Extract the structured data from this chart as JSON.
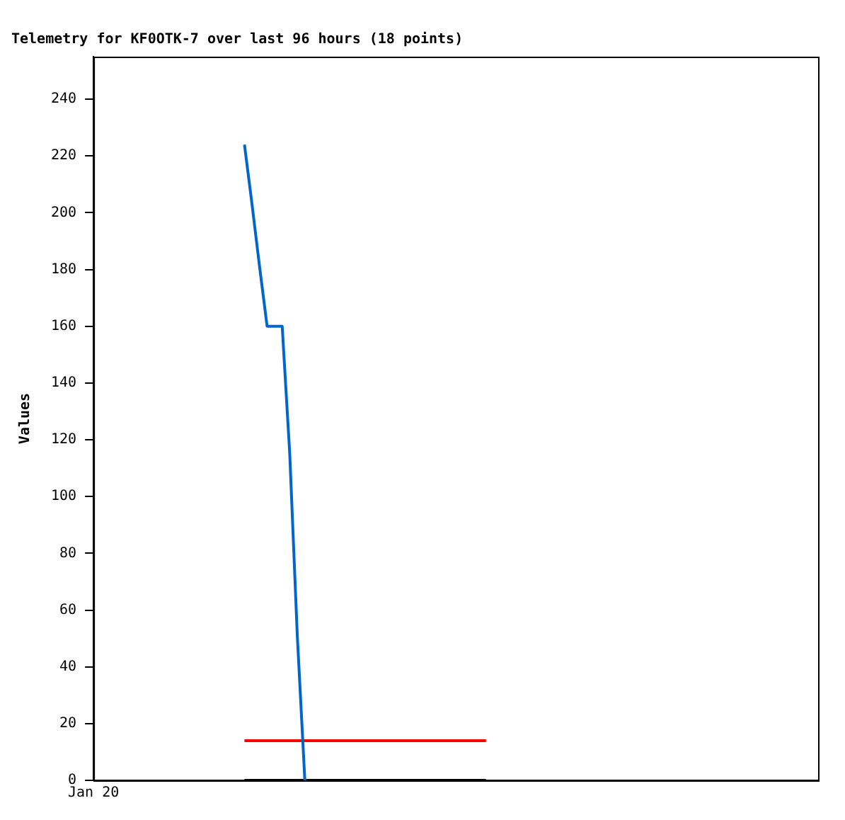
{
  "chart_data": {
    "type": "line",
    "title": "Telemetry for KF0OTK-7 over last 96 hours (18 points)",
    "ylabel": "Values",
    "categories": [
      "Jan 20",
      null,
      null,
      null,
      null,
      null,
      null,
      null,
      null,
      null,
      null,
      null,
      null,
      null,
      null,
      null,
      null,
      null,
      null,
      null,
      null,
      null,
      null,
      null,
      null,
      null,
      null,
      null,
      null,
      null,
      null,
      null,
      null,
      null,
      null,
      null,
      null,
      null,
      null,
      null,
      null,
      null,
      null,
      null,
      null,
      null,
      null,
      null,
      null,
      null,
      null,
      null,
      null,
      null,
      null,
      null,
      null,
      null,
      null,
      null,
      null,
      null,
      null,
      null,
      null,
      null,
      null,
      null,
      null,
      null,
      null,
      null,
      null,
      null,
      null,
      null,
      null,
      null,
      null,
      null,
      null,
      null,
      null,
      null,
      null,
      null,
      null,
      null,
      null,
      null,
      null,
      null,
      null,
      null,
      null,
      null,
      null
    ],
    "ylim": [
      0,
      255
    ],
    "yticks": [
      0,
      20,
      40,
      60,
      80,
      100,
      120,
      140,
      160,
      180,
      200,
      220,
      240
    ],
    "grid": false,
    "legend": false,
    "marker": "none",
    "line_style": "solid",
    "series": [
      {
        "color": "#0066cc",
        "values": [
          null,
          null,
          null,
          null,
          null,
          null,
          null,
          null,
          null,
          null,
          null,
          null,
          null,
          null,
          null,
          null,
          null,
          null,
          null,
          null,
          224,
          203,
          181,
          160,
          160,
          160,
          115,
          51,
          0,
          null,
          null,
          null,
          null,
          null,
          null,
          null,
          null,
          null,
          null,
          null,
          null,
          null,
          null,
          null,
          null,
          null,
          null,
          null,
          null,
          null,
          null,
          null,
          null,
          null,
          null,
          null,
          null,
          null,
          null,
          null,
          null,
          null,
          null,
          null,
          null,
          null,
          null,
          null,
          null,
          null,
          null,
          null,
          null,
          null,
          null,
          null,
          null,
          null,
          null,
          null,
          null,
          null,
          null,
          null,
          null,
          null,
          null,
          null,
          null,
          null,
          null,
          null,
          null,
          null,
          null,
          null,
          null
        ]
      },
      {
        "color": "#ff0000",
        "values": [
          null,
          null,
          null,
          null,
          null,
          null,
          null,
          null,
          null,
          null,
          null,
          null,
          null,
          null,
          null,
          null,
          null,
          null,
          null,
          null,
          14,
          14,
          14,
          14,
          14,
          14,
          14,
          14,
          14,
          14,
          14,
          14,
          14,
          14,
          14,
          14,
          14,
          14,
          14,
          14,
          14,
          14,
          14,
          14,
          14,
          14,
          14,
          14,
          14,
          14,
          14,
          14,
          14,
          null,
          null,
          null,
          null,
          null,
          null,
          null,
          null,
          null,
          null,
          null,
          null,
          null,
          null,
          null,
          null,
          null,
          null,
          null,
          null,
          null,
          null,
          null,
          null,
          null,
          null,
          null,
          null,
          null,
          null,
          null,
          null,
          null,
          null,
          null,
          null,
          null,
          null,
          null,
          null,
          null,
          null,
          null,
          null
        ]
      },
      {
        "color": "#000000",
        "values": [
          null,
          null,
          null,
          null,
          null,
          null,
          null,
          null,
          null,
          null,
          null,
          null,
          null,
          null,
          null,
          null,
          null,
          null,
          null,
          null,
          0,
          0,
          0,
          0,
          0,
          0,
          0,
          0,
          0,
          0,
          0,
          0,
          0,
          0,
          0,
          0,
          0,
          0,
          0,
          0,
          0,
          0,
          0,
          0,
          0,
          0,
          0,
          0,
          0,
          0,
          0,
          0,
          0,
          null,
          null,
          null,
          null,
          null,
          null,
          null,
          null,
          null,
          null,
          null,
          null,
          null,
          null,
          null,
          null,
          null,
          null,
          null,
          null,
          null,
          null,
          null,
          null,
          null,
          null,
          null,
          null,
          null,
          null,
          null,
          null,
          null,
          null,
          null,
          null,
          null,
          null,
          null,
          null,
          null,
          null,
          null,
          null
        ]
      }
    ]
  }
}
